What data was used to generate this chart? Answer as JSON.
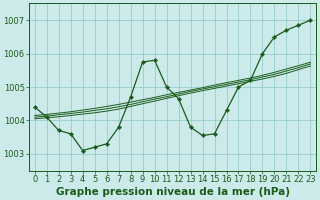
{
  "title": "Graphe pression niveau de la mer (hPa)",
  "background_color": "#cceaea",
  "grid_color": "#99cccc",
  "line_color": "#1a5c1a",
  "x_values": [
    0,
    1,
    2,
    3,
    4,
    5,
    6,
    7,
    8,
    9,
    10,
    11,
    12,
    13,
    14,
    15,
    16,
    17,
    18,
    19,
    20,
    21,
    22,
    23
  ],
  "y_main": [
    1004.4,
    1004.1,
    1003.7,
    1003.6,
    1003.1,
    1003.2,
    1003.3,
    1003.8,
    1004.7,
    1005.75,
    1005.8,
    1005.0,
    1004.65,
    1003.8,
    1003.55,
    1003.6,
    1004.3,
    1005.0,
    1005.2,
    1006.0,
    1006.5,
    1006.7,
    1006.85,
    1007.0
  ],
  "y_smooth1": [
    1004.05,
    1004.08,
    1004.11,
    1004.15,
    1004.19,
    1004.23,
    1004.28,
    1004.34,
    1004.42,
    1004.5,
    1004.58,
    1004.66,
    1004.74,
    1004.82,
    1004.89,
    1004.96,
    1005.03,
    1005.1,
    1005.17,
    1005.24,
    1005.32,
    1005.41,
    1005.52,
    1005.63
  ],
  "y_smooth2": [
    1004.1,
    1004.13,
    1004.17,
    1004.21,
    1004.25,
    1004.3,
    1004.35,
    1004.41,
    1004.48,
    1004.56,
    1004.64,
    1004.71,
    1004.79,
    1004.87,
    1004.94,
    1005.01,
    1005.08,
    1005.15,
    1005.22,
    1005.3,
    1005.38,
    1005.48,
    1005.58,
    1005.69
  ],
  "y_smooth3": [
    1004.15,
    1004.18,
    1004.22,
    1004.26,
    1004.31,
    1004.36,
    1004.42,
    1004.48,
    1004.55,
    1004.62,
    1004.69,
    1004.77,
    1004.84,
    1004.91,
    1004.98,
    1005.06,
    1005.13,
    1005.2,
    1005.27,
    1005.35,
    1005.44,
    1005.54,
    1005.64,
    1005.74
  ],
  "ylim": [
    1002.5,
    1007.5
  ],
  "yticks": [
    1003,
    1004,
    1005,
    1006,
    1007
  ],
  "xlim": [
    -0.5,
    23.5
  ],
  "title_fontsize": 7.5,
  "tick_fontsize": 6.0
}
